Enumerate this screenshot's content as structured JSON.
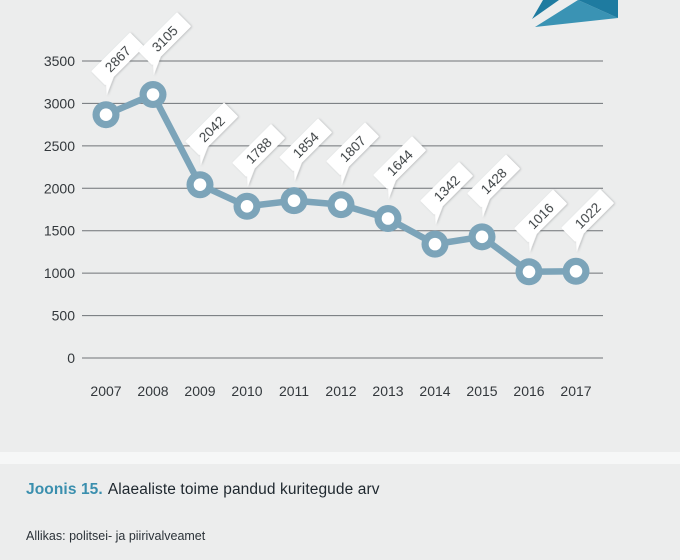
{
  "page": {
    "background": "#eceded"
  },
  "decoration": {
    "name": "corner-arrow",
    "dark": "#1e7ba0",
    "medium": "#3a93b4"
  },
  "chart_data": {
    "type": "line",
    "title": "Alaealiste toime pandud kuritegude arv",
    "categories": [
      "2007",
      "2008",
      "2009",
      "2010",
      "2011",
      "2012",
      "2013",
      "2014",
      "2015",
      "2016",
      "2017"
    ],
    "values": [
      2867,
      3105,
      2042,
      1788,
      1854,
      1807,
      1644,
      1342,
      1428,
      1016,
      1022
    ],
    "data_labels": [
      "2867",
      "3105",
      "2042",
      "1788",
      "1854",
      "1807",
      "1644",
      "1342",
      "1428",
      "1016",
      "1022"
    ],
    "xlabel": "",
    "ylabel": "",
    "ylim": [
      0,
      3500
    ],
    "yticks": [
      3500,
      3000,
      2500,
      2000,
      1500,
      1000,
      500,
      0
    ],
    "grid": "horizontal",
    "legend": "none",
    "marker": "ring",
    "series_color": "#7ca4b9",
    "grid_color": "#6f7377",
    "axis_text_color": "#33383c",
    "label_bg": "#ffffff",
    "label_text_color": "#2c3134"
  },
  "caption": {
    "label": "Joonis 15.",
    "label_color": "#3a8fae",
    "text": "Alaealiste toime pandud kuritegude arv"
  },
  "source": {
    "text": "Allikas: politsei- ja piirivalveamet"
  }
}
